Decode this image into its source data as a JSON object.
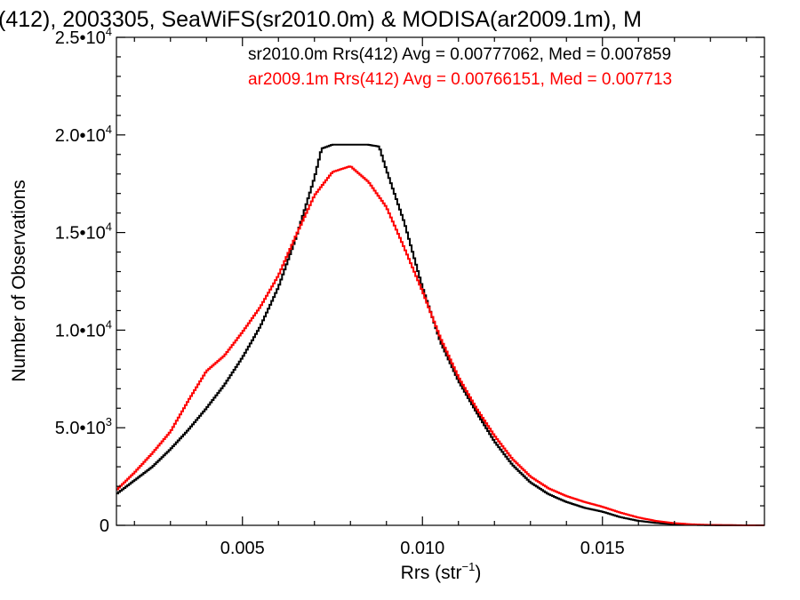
{
  "chart_data": {
    "type": "histogram",
    "title": "(412), 2003305, SeaWiFS(sr2010.0m) & MODISA(ar2009.1m), M",
    "xlabel": "Rrs (str",
    "xlabel_sup": "−1",
    "xlabel_close": ")",
    "ylabel": "Number of Observations",
    "xlim": [
      0.0015,
      0.0195
    ],
    "ylim": [
      0,
      25000
    ],
    "grid": false,
    "x_ticks": [
      {
        "value": 0.005,
        "label": "0.005"
      },
      {
        "value": 0.01,
        "label": "0.010"
      },
      {
        "value": 0.015,
        "label": "0.015"
      }
    ],
    "y_ticks": [
      {
        "value": 0,
        "label": "0",
        "exp": ""
      },
      {
        "value": 5000,
        "label": "5.0•10",
        "exp": "3"
      },
      {
        "value": 10000,
        "label": "1.0•10",
        "exp": "4"
      },
      {
        "value": 15000,
        "label": "1.5•10",
        "exp": "4"
      },
      {
        "value": 20000,
        "label": "2.0•10",
        "exp": "4"
      },
      {
        "value": 25000,
        "label": "2.5•10",
        "exp": "4"
      }
    ],
    "annotations": [
      {
        "text": "sr2010.0m Rrs(412) Avg = 0.00777062, Med = 0.007859",
        "color": "#000000"
      },
      {
        "text": "ar2009.1m Rrs(412) Avg = 0.00766151, Med = 0.007713",
        "color": "#ff0000"
      }
    ],
    "series": [
      {
        "color": "#000000",
        "points": [
          [
            0.0015,
            1600
          ],
          [
            0.002,
            2300
          ],
          [
            0.0025,
            3000
          ],
          [
            0.003,
            3900
          ],
          [
            0.0035,
            4900
          ],
          [
            0.004,
            6000
          ],
          [
            0.0045,
            7200
          ],
          [
            0.005,
            8600
          ],
          [
            0.0055,
            10200
          ],
          [
            0.006,
            12200
          ],
          [
            0.0065,
            14800
          ],
          [
            0.007,
            17800
          ],
          [
            0.0072,
            19300
          ],
          [
            0.0075,
            19500
          ],
          [
            0.008,
            19500
          ],
          [
            0.0085,
            19500
          ],
          [
            0.0088,
            19400
          ],
          [
            0.009,
            18200
          ],
          [
            0.0095,
            15500
          ],
          [
            0.01,
            12200
          ],
          [
            0.0105,
            9400
          ],
          [
            0.011,
            7400
          ],
          [
            0.0115,
            5800
          ],
          [
            0.012,
            4300
          ],
          [
            0.0125,
            3100
          ],
          [
            0.013,
            2200
          ],
          [
            0.0135,
            1600
          ],
          [
            0.014,
            1200
          ],
          [
            0.0145,
            900
          ],
          [
            0.015,
            700
          ],
          [
            0.0155,
            420
          ],
          [
            0.016,
            230
          ],
          [
            0.0165,
            120
          ],
          [
            0.017,
            60
          ],
          [
            0.0175,
            25
          ],
          [
            0.018,
            10
          ],
          [
            0.019,
            0
          ],
          [
            0.0195,
            0
          ]
        ]
      },
      {
        "color": "#ff0000",
        "points": [
          [
            0.0015,
            1800
          ],
          [
            0.002,
            2700
          ],
          [
            0.0025,
            3700
          ],
          [
            0.003,
            4800
          ],
          [
            0.0035,
            6400
          ],
          [
            0.004,
            7900
          ],
          [
            0.0045,
            8700
          ],
          [
            0.005,
            9900
          ],
          [
            0.0055,
            11200
          ],
          [
            0.006,
            12800
          ],
          [
            0.0065,
            14900
          ],
          [
            0.007,
            16900
          ],
          [
            0.0075,
            18100
          ],
          [
            0.008,
            18400
          ],
          [
            0.0085,
            17600
          ],
          [
            0.009,
            16300
          ],
          [
            0.0095,
            14200
          ],
          [
            0.01,
            12000
          ],
          [
            0.0105,
            9600
          ],
          [
            0.011,
            7600
          ],
          [
            0.0115,
            6000
          ],
          [
            0.012,
            4600
          ],
          [
            0.0125,
            3400
          ],
          [
            0.013,
            2500
          ],
          [
            0.0135,
            1900
          ],
          [
            0.014,
            1500
          ],
          [
            0.0145,
            1200
          ],
          [
            0.015,
            950
          ],
          [
            0.0155,
            650
          ],
          [
            0.016,
            400
          ],
          [
            0.0165,
            220
          ],
          [
            0.017,
            110
          ],
          [
            0.0175,
            50
          ],
          [
            0.018,
            20
          ],
          [
            0.019,
            0
          ],
          [
            0.0195,
            0
          ]
        ]
      }
    ]
  }
}
